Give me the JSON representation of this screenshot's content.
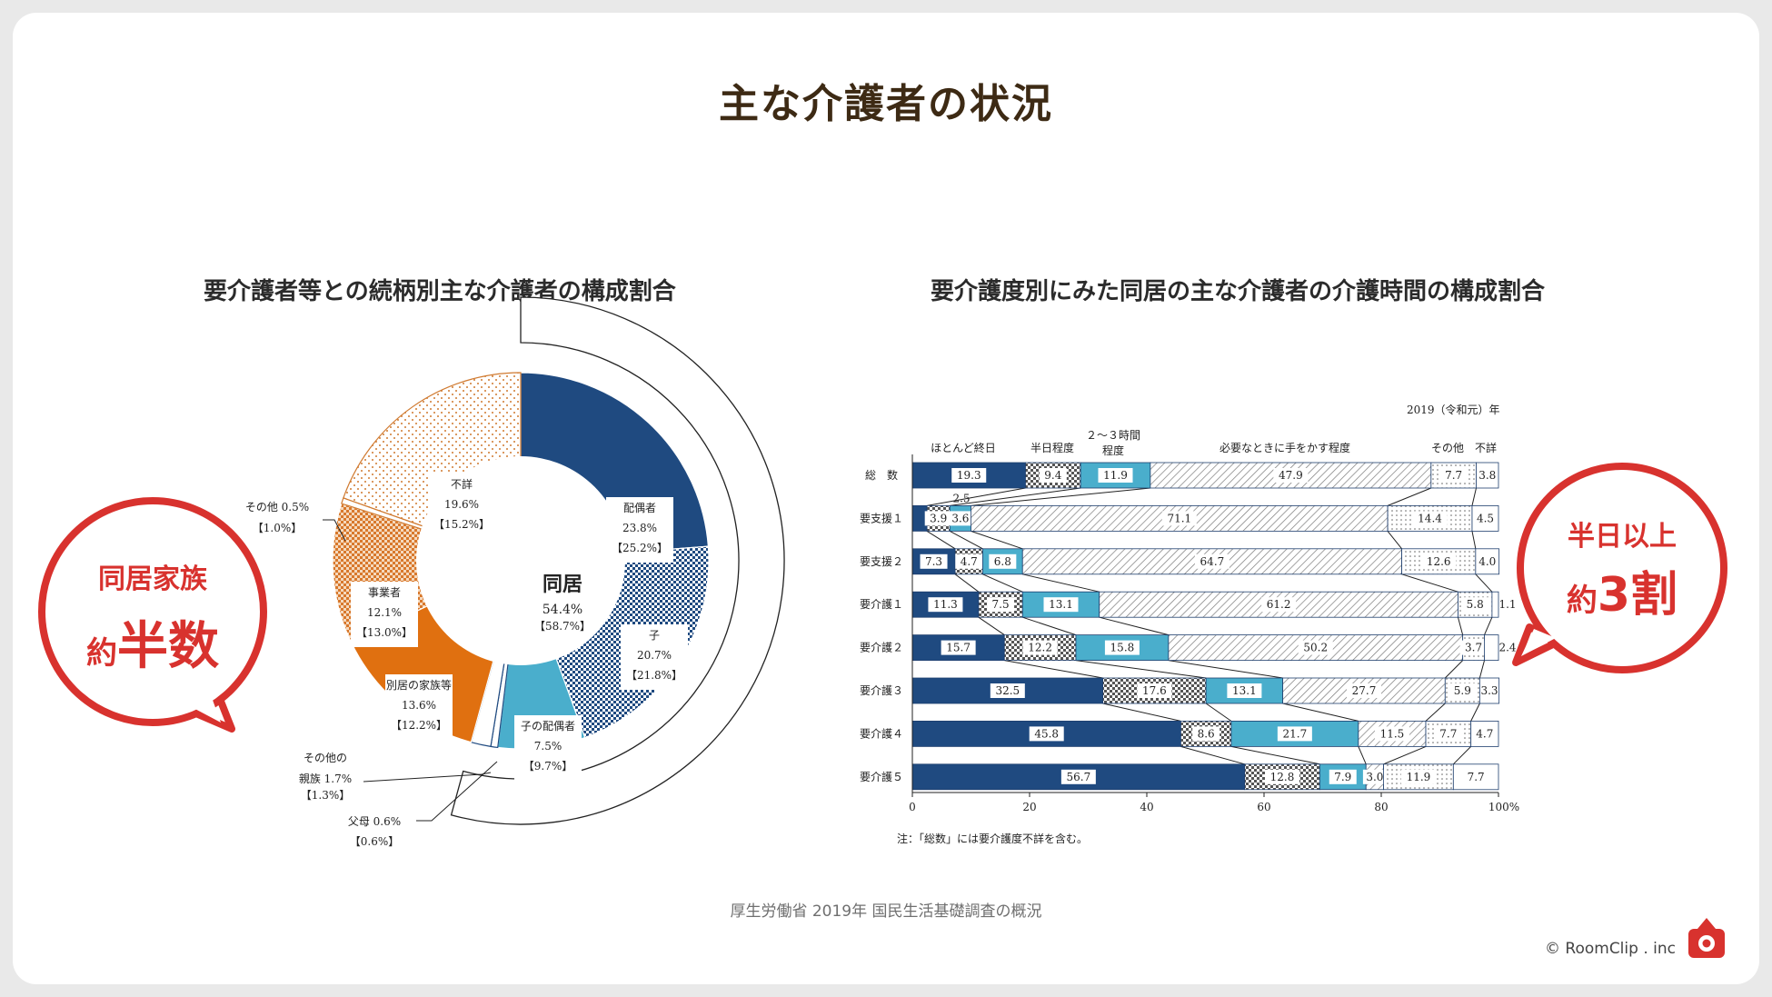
{
  "page": {
    "title": "主な介護者の状況",
    "left_subtitle": "要介護者等との続柄別主な介護者の構成割合",
    "right_subtitle": "要介護度別にみた同居の主な介護者の介護時間の構成割合",
    "source": "厚生労働省 2019年 国民生活基礎調査の概況",
    "brand": "RoomClip . inc",
    "brand_copyright": "©",
    "left_bubble": {
      "line1": "同居家族",
      "line2a": "約",
      "line2b": "半数"
    },
    "right_bubble": {
      "line1": "半日以上",
      "line2a": "約",
      "line2b": "3割"
    },
    "colors": {
      "accent": "#d8322e",
      "navy": "#1f4a80",
      "cyan": "#4aaecc",
      "orange": "#e07010",
      "light_orange": "#e8a060",
      "title": "#3d2a14"
    }
  },
  "chart_data": [
    {
      "type": "pie",
      "title": "要介護者等との続柄別主な介護者の構成割合",
      "center_label": "同居",
      "center_value": "54.4%",
      "center_prev": "【58.7%】",
      "slices": [
        {
          "name": "配偶者",
          "value": 23.8,
          "value_text": "23.8%",
          "prev": "【25.2%】",
          "group": "同居"
        },
        {
          "name": "子",
          "value": 20.7,
          "value_text": "20.7%",
          "prev": "【21.8%】",
          "group": "同居"
        },
        {
          "name": "子の配偶者",
          "value": 7.5,
          "value_text": "7.5%",
          "prev": "【9.7%】",
          "group": "同居"
        },
        {
          "name": "父母",
          "value": 0.6,
          "value_text": "父母 0.6%",
          "prev": "【0.6%】",
          "group": "同居"
        },
        {
          "name": "その他の親族",
          "value": 1.7,
          "value_text": "親族 1.7%",
          "label_line1": "その他の",
          "prev": "【1.3%】",
          "group": "同居"
        },
        {
          "name": "別居の家族等",
          "value": 13.6,
          "value_text": "13.6%",
          "prev": "【12.2%】"
        },
        {
          "name": "事業者",
          "value": 12.1,
          "value_text": "12.1%",
          "prev": "【13.0%】"
        },
        {
          "name": "その他",
          "value": 0.5,
          "value_text": "その他 0.5%",
          "prev": "【1.0%】"
        },
        {
          "name": "不詳",
          "value": 19.6,
          "value_text": "19.6%",
          "prev": "【15.2%】"
        }
      ]
    },
    {
      "type": "bar",
      "orientation": "horizontal",
      "stacked": true,
      "title": "要介護度別にみた同居の主な介護者の介護時間の構成割合",
      "year_label": "2019（令和元）年",
      "categories": [
        "総　数",
        "要支援１",
        "要支援２",
        "要介護１",
        "要介護２",
        "要介護３",
        "要介護４",
        "要介護５"
      ],
      "series": [
        {
          "name": "ほとんど終日",
          "values": [
            19.3,
            2.5,
            7.3,
            11.3,
            15.7,
            32.5,
            45.8,
            56.7
          ]
        },
        {
          "name": "半日程度",
          "values": [
            9.4,
            3.9,
            4.7,
            7.5,
            12.2,
            17.6,
            8.6,
            12.8
          ]
        },
        {
          "name": "２～３時間程度",
          "values": [
            11.9,
            3.6,
            6.8,
            13.1,
            15.8,
            13.1,
            21.7,
            7.9
          ]
        },
        {
          "name": "必要なときに手をかす程度",
          "values": [
            47.9,
            71.1,
            64.7,
            61.2,
            50.2,
            27.7,
            11.5,
            3.0
          ]
        },
        {
          "name": "その他",
          "values": [
            7.7,
            14.4,
            12.6,
            5.8,
            3.7,
            5.9,
            7.7,
            11.9
          ]
        },
        {
          "name": "不詳",
          "values": [
            3.8,
            4.5,
            4.0,
            1.1,
            2.4,
            3.3,
            4.7,
            7.7
          ]
        }
      ],
      "series_header": {
        "s0": "ほとんど終日",
        "s1": "半日程度",
        "s2a": "２～３時間",
        "s2b": "程度",
        "s3": "必要なときに手をかす程度",
        "s4": "その他",
        "s5": "不詳"
      },
      "xlim": [
        0,
        100
      ],
      "x_ticks": [
        "0",
        "20",
        "40",
        "60",
        "80",
        "100%"
      ],
      "note": "注：「総数」には要介護度不詳を含む。"
    }
  ]
}
